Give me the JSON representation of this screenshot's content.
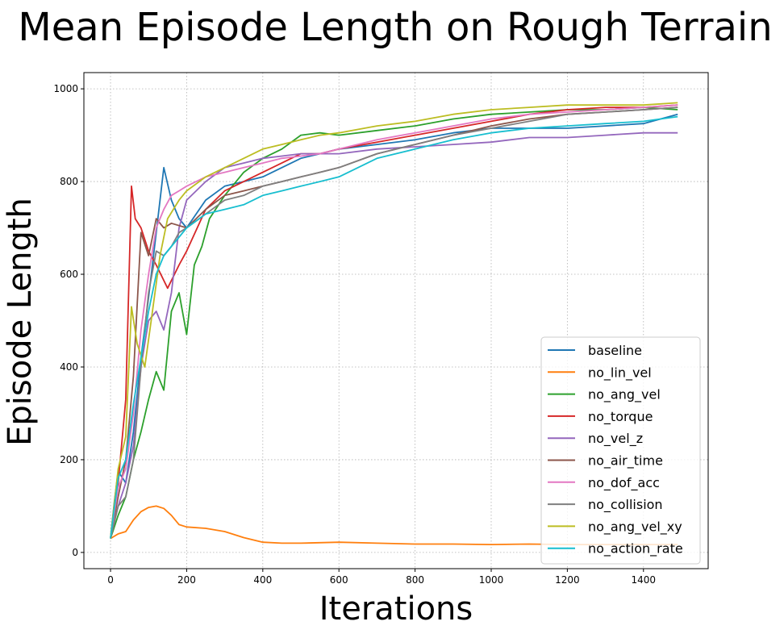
{
  "chart_data": {
    "type": "line",
    "title": "Mean Episode Length on Rough Terrain",
    "xlabel": "Iterations",
    "ylabel": "Episode Length",
    "xlim": [
      -70,
      1570
    ],
    "ylim": [
      -35,
      1035
    ],
    "x_ticks": [
      0,
      200,
      400,
      600,
      800,
      1000,
      1200,
      1400
    ],
    "y_ticks": [
      0,
      200,
      400,
      600,
      800,
      1000
    ],
    "grid": true,
    "legend_position": "lower-right",
    "series": [
      {
        "name": "baseline",
        "color": "#1f77b4",
        "points": [
          [
            0,
            30
          ],
          [
            10,
            110
          ],
          [
            20,
            175
          ],
          [
            40,
            150
          ],
          [
            60,
            260
          ],
          [
            80,
            420
          ],
          [
            100,
            550
          ],
          [
            120,
            690
          ],
          [
            140,
            830
          ],
          [
            160,
            760
          ],
          [
            180,
            720
          ],
          [
            200,
            700
          ],
          [
            250,
            760
          ],
          [
            300,
            790
          ],
          [
            350,
            800
          ],
          [
            400,
            810
          ],
          [
            450,
            830
          ],
          [
            500,
            850
          ],
          [
            550,
            860
          ],
          [
            600,
            870
          ],
          [
            700,
            880
          ],
          [
            800,
            890
          ],
          [
            900,
            905
          ],
          [
            1000,
            915
          ],
          [
            1100,
            915
          ],
          [
            1200,
            915
          ],
          [
            1300,
            920
          ],
          [
            1400,
            925
          ],
          [
            1490,
            945
          ]
        ]
      },
      {
        "name": "no_lin_vel",
        "color": "#ff7f0e",
        "points": [
          [
            0,
            30
          ],
          [
            20,
            40
          ],
          [
            40,
            45
          ],
          [
            60,
            70
          ],
          [
            80,
            88
          ],
          [
            100,
            97
          ],
          [
            120,
            100
          ],
          [
            140,
            95
          ],
          [
            160,
            80
          ],
          [
            180,
            60
          ],
          [
            200,
            55
          ],
          [
            250,
            52
          ],
          [
            300,
            45
          ],
          [
            350,
            32
          ],
          [
            400,
            22
          ],
          [
            450,
            20
          ],
          [
            500,
            20
          ],
          [
            600,
            22
          ],
          [
            700,
            20
          ],
          [
            800,
            18
          ],
          [
            900,
            18
          ],
          [
            1000,
            17
          ],
          [
            1100,
            18
          ],
          [
            1200,
            17
          ],
          [
            1300,
            17
          ],
          [
            1400,
            17
          ],
          [
            1490,
            17
          ]
        ]
      },
      {
        "name": "no_ang_vel",
        "color": "#2ca02c",
        "points": [
          [
            0,
            30
          ],
          [
            20,
            80
          ],
          [
            40,
            120
          ],
          [
            60,
            200
          ],
          [
            80,
            260
          ],
          [
            100,
            330
          ],
          [
            120,
            390
          ],
          [
            140,
            350
          ],
          [
            160,
            520
          ],
          [
            180,
            560
          ],
          [
            200,
            470
          ],
          [
            220,
            620
          ],
          [
            240,
            660
          ],
          [
            260,
            720
          ],
          [
            300,
            770
          ],
          [
            350,
            820
          ],
          [
            400,
            850
          ],
          [
            450,
            870
          ],
          [
            500,
            900
          ],
          [
            550,
            905
          ],
          [
            600,
            900
          ],
          [
            700,
            910
          ],
          [
            800,
            920
          ],
          [
            900,
            935
          ],
          [
            1000,
            945
          ],
          [
            1100,
            950
          ],
          [
            1200,
            955
          ],
          [
            1300,
            955
          ],
          [
            1400,
            960
          ],
          [
            1490,
            955
          ]
        ]
      },
      {
        "name": "no_torque",
        "color": "#d62728",
        "points": [
          [
            0,
            30
          ],
          [
            20,
            150
          ],
          [
            40,
            330
          ],
          [
            55,
            790
          ],
          [
            65,
            720
          ],
          [
            80,
            700
          ],
          [
            100,
            650
          ],
          [
            120,
            620
          ],
          [
            150,
            570
          ],
          [
            180,
            620
          ],
          [
            200,
            650
          ],
          [
            250,
            740
          ],
          [
            300,
            780
          ],
          [
            350,
            800
          ],
          [
            400,
            820
          ],
          [
            450,
            840
          ],
          [
            500,
            860
          ],
          [
            550,
            860
          ],
          [
            600,
            870
          ],
          [
            700,
            885
          ],
          [
            800,
            900
          ],
          [
            900,
            915
          ],
          [
            1000,
            930
          ],
          [
            1100,
            945
          ],
          [
            1200,
            955
          ],
          [
            1300,
            960
          ],
          [
            1400,
            960
          ],
          [
            1490,
            965
          ]
        ]
      },
      {
        "name": "no_vel_z",
        "color": "#9467bd",
        "points": [
          [
            0,
            30
          ],
          [
            20,
            100
          ],
          [
            40,
            150
          ],
          [
            60,
            230
          ],
          [
            80,
            400
          ],
          [
            100,
            500
          ],
          [
            120,
            520
          ],
          [
            140,
            480
          ],
          [
            160,
            560
          ],
          [
            180,
            700
          ],
          [
            200,
            760
          ],
          [
            250,
            800
          ],
          [
            300,
            830
          ],
          [
            350,
            840
          ],
          [
            400,
            850
          ],
          [
            450,
            855
          ],
          [
            500,
            860
          ],
          [
            550,
            860
          ],
          [
            600,
            860
          ],
          [
            700,
            870
          ],
          [
            800,
            875
          ],
          [
            900,
            880
          ],
          [
            1000,
            885
          ],
          [
            1100,
            895
          ],
          [
            1200,
            895
          ],
          [
            1300,
            900
          ],
          [
            1400,
            905
          ],
          [
            1490,
            905
          ]
        ]
      },
      {
        "name": "no_air_time",
        "color": "#8c564b",
        "points": [
          [
            0,
            30
          ],
          [
            20,
            120
          ],
          [
            40,
            200
          ],
          [
            60,
            380
          ],
          [
            80,
            690
          ],
          [
            100,
            640
          ],
          [
            120,
            720
          ],
          [
            140,
            700
          ],
          [
            160,
            710
          ],
          [
            200,
            700
          ],
          [
            250,
            740
          ],
          [
            300,
            770
          ],
          [
            350,
            780
          ],
          [
            400,
            790
          ],
          [
            450,
            800
          ],
          [
            500,
            810
          ],
          [
            550,
            820
          ],
          [
            600,
            830
          ],
          [
            700,
            860
          ],
          [
            800,
            880
          ],
          [
            900,
            900
          ],
          [
            1000,
            920
          ],
          [
            1100,
            935
          ],
          [
            1200,
            945
          ],
          [
            1300,
            950
          ],
          [
            1400,
            955
          ],
          [
            1490,
            960
          ]
        ]
      },
      {
        "name": "no_dof_acc",
        "color": "#e377c2",
        "points": [
          [
            0,
            30
          ],
          [
            20,
            140
          ],
          [
            40,
            180
          ],
          [
            60,
            300
          ],
          [
            80,
            480
          ],
          [
            100,
            600
          ],
          [
            120,
            700
          ],
          [
            140,
            740
          ],
          [
            160,
            770
          ],
          [
            180,
            780
          ],
          [
            200,
            790
          ],
          [
            250,
            810
          ],
          [
            300,
            820
          ],
          [
            350,
            830
          ],
          [
            400,
            840
          ],
          [
            450,
            850
          ],
          [
            500,
            855
          ],
          [
            550,
            860
          ],
          [
            600,
            870
          ],
          [
            700,
            890
          ],
          [
            800,
            905
          ],
          [
            900,
            920
          ],
          [
            1000,
            935
          ],
          [
            1100,
            945
          ],
          [
            1200,
            950
          ],
          [
            1300,
            955
          ],
          [
            1400,
            960
          ],
          [
            1490,
            965
          ]
        ]
      },
      {
        "name": "no_collision",
        "color": "#7f7f7f",
        "points": [
          [
            0,
            30
          ],
          [
            20,
            100
          ],
          [
            40,
            120
          ],
          [
            60,
            200
          ],
          [
            80,
            400
          ],
          [
            100,
            560
          ],
          [
            120,
            650
          ],
          [
            140,
            640
          ],
          [
            160,
            660
          ],
          [
            180,
            690
          ],
          [
            200,
            700
          ],
          [
            250,
            730
          ],
          [
            300,
            760
          ],
          [
            350,
            770
          ],
          [
            400,
            790
          ],
          [
            450,
            800
          ],
          [
            500,
            810
          ],
          [
            550,
            820
          ],
          [
            600,
            830
          ],
          [
            700,
            860
          ],
          [
            800,
            880
          ],
          [
            900,
            900
          ],
          [
            1000,
            915
          ],
          [
            1100,
            930
          ],
          [
            1200,
            945
          ],
          [
            1300,
            950
          ],
          [
            1400,
            955
          ],
          [
            1490,
            960
          ]
        ]
      },
      {
        "name": "no_ang_vel_xy",
        "color": "#bcbd22",
        "points": [
          [
            0,
            30
          ],
          [
            20,
            180
          ],
          [
            40,
            250
          ],
          [
            55,
            530
          ],
          [
            70,
            450
          ],
          [
            90,
            400
          ],
          [
            110,
            520
          ],
          [
            130,
            640
          ],
          [
            150,
            720
          ],
          [
            180,
            760
          ],
          [
            200,
            780
          ],
          [
            250,
            810
          ],
          [
            300,
            830
          ],
          [
            350,
            850
          ],
          [
            400,
            870
          ],
          [
            450,
            880
          ],
          [
            500,
            890
          ],
          [
            550,
            900
          ],
          [
            600,
            905
          ],
          [
            700,
            920
          ],
          [
            800,
            930
          ],
          [
            900,
            945
          ],
          [
            1000,
            955
          ],
          [
            1100,
            960
          ],
          [
            1200,
            965
          ],
          [
            1300,
            965
          ],
          [
            1400,
            965
          ],
          [
            1490,
            970
          ]
        ]
      },
      {
        "name": "no_action_rate",
        "color": "#17becf",
        "points": [
          [
            0,
            30
          ],
          [
            20,
            160
          ],
          [
            40,
            200
          ],
          [
            60,
            320
          ],
          [
            80,
            420
          ],
          [
            100,
            520
          ],
          [
            120,
            600
          ],
          [
            140,
            640
          ],
          [
            160,
            660
          ],
          [
            180,
            680
          ],
          [
            200,
            700
          ],
          [
            250,
            730
          ],
          [
            300,
            740
          ],
          [
            350,
            750
          ],
          [
            400,
            770
          ],
          [
            450,
            780
          ],
          [
            500,
            790
          ],
          [
            550,
            800
          ],
          [
            600,
            810
          ],
          [
            700,
            850
          ],
          [
            800,
            870
          ],
          [
            900,
            890
          ],
          [
            1000,
            905
          ],
          [
            1100,
            915
          ],
          [
            1200,
            920
          ],
          [
            1300,
            925
          ],
          [
            1400,
            930
          ],
          [
            1490,
            940
          ]
        ]
      }
    ]
  }
}
